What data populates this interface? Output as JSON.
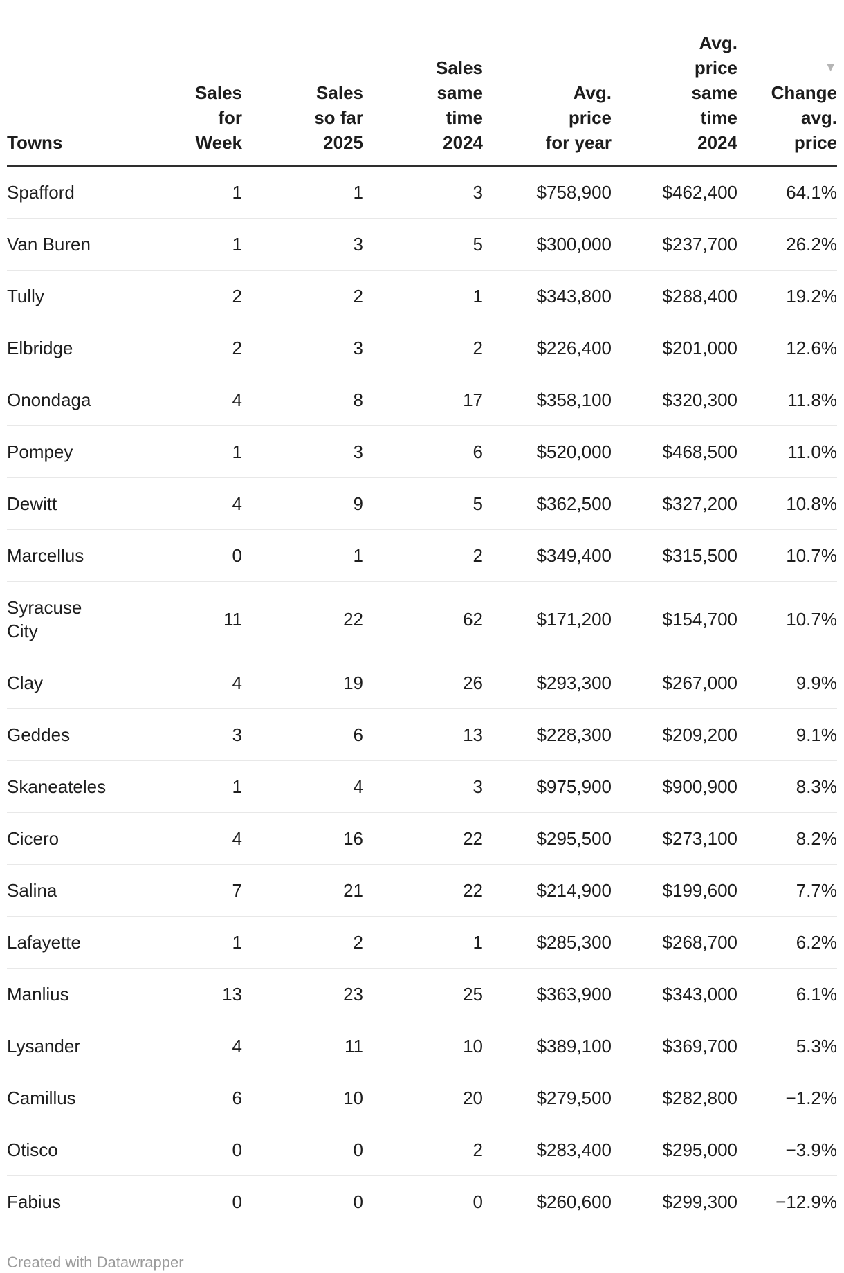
{
  "table": {
    "sort_indicator": "▼",
    "sorted_column": "change",
    "columns": [
      {
        "key": "town",
        "label": "Towns",
        "align": "left"
      },
      {
        "key": "week",
        "label": "Sales\nfor\nWeek",
        "align": "right"
      },
      {
        "key": "ytd2025",
        "label": "Sales\nso far\n2025",
        "align": "right"
      },
      {
        "key": "same2024",
        "label": "Sales\nsame\ntime\n2024",
        "align": "right"
      },
      {
        "key": "avgprice",
        "label": "Avg.\nprice\nfor year",
        "align": "right"
      },
      {
        "key": "avg2024",
        "label": "Avg.\nprice\nsame\ntime\n2024",
        "align": "right"
      },
      {
        "key": "change",
        "label": "Change\navg.\nprice",
        "align": "right"
      }
    ],
    "rows": [
      {
        "town": "Spafford",
        "week": "1",
        "ytd2025": "1",
        "same2024": "3",
        "avgprice": "$758,900",
        "avg2024": "$462,400",
        "change": "64.1%"
      },
      {
        "town": "Van Buren",
        "week": "1",
        "ytd2025": "3",
        "same2024": "5",
        "avgprice": "$300,000",
        "avg2024": "$237,700",
        "change": "26.2%"
      },
      {
        "town": "Tully",
        "week": "2",
        "ytd2025": "2",
        "same2024": "1",
        "avgprice": "$343,800",
        "avg2024": "$288,400",
        "change": "19.2%"
      },
      {
        "town": "Elbridge",
        "week": "2",
        "ytd2025": "3",
        "same2024": "2",
        "avgprice": "$226,400",
        "avg2024": "$201,000",
        "change": "12.6%"
      },
      {
        "town": "Onondaga",
        "week": "4",
        "ytd2025": "8",
        "same2024": "17",
        "avgprice": "$358,100",
        "avg2024": "$320,300",
        "change": "11.8%"
      },
      {
        "town": "Pompey",
        "week": "1",
        "ytd2025": "3",
        "same2024": "6",
        "avgprice": "$520,000",
        "avg2024": "$468,500",
        "change": "11.0%"
      },
      {
        "town": "Dewitt",
        "week": "4",
        "ytd2025": "9",
        "same2024": "5",
        "avgprice": "$362,500",
        "avg2024": "$327,200",
        "change": "10.8%"
      },
      {
        "town": "Marcellus",
        "week": "0",
        "ytd2025": "1",
        "same2024": "2",
        "avgprice": "$349,400",
        "avg2024": "$315,500",
        "change": "10.7%"
      },
      {
        "town": "Syracuse City",
        "week": "11",
        "ytd2025": "22",
        "same2024": "62",
        "avgprice": "$171,200",
        "avg2024": "$154,700",
        "change": "10.7%"
      },
      {
        "town": "Clay",
        "week": "4",
        "ytd2025": "19",
        "same2024": "26",
        "avgprice": "$293,300",
        "avg2024": "$267,000",
        "change": "9.9%"
      },
      {
        "town": "Geddes",
        "week": "3",
        "ytd2025": "6",
        "same2024": "13",
        "avgprice": "$228,300",
        "avg2024": "$209,200",
        "change": "9.1%"
      },
      {
        "town": "Skaneateles",
        "week": "1",
        "ytd2025": "4",
        "same2024": "3",
        "avgprice": "$975,900",
        "avg2024": "$900,900",
        "change": "8.3%"
      },
      {
        "town": "Cicero",
        "week": "4",
        "ytd2025": "16",
        "same2024": "22",
        "avgprice": "$295,500",
        "avg2024": "$273,100",
        "change": "8.2%"
      },
      {
        "town": "Salina",
        "week": "7",
        "ytd2025": "21",
        "same2024": "22",
        "avgprice": "$214,900",
        "avg2024": "$199,600",
        "change": "7.7%"
      },
      {
        "town": "Lafayette",
        "week": "1",
        "ytd2025": "2",
        "same2024": "1",
        "avgprice": "$285,300",
        "avg2024": "$268,700",
        "change": "6.2%"
      },
      {
        "town": "Manlius",
        "week": "13",
        "ytd2025": "23",
        "same2024": "25",
        "avgprice": "$363,900",
        "avg2024": "$343,000",
        "change": "6.1%"
      },
      {
        "town": "Lysander",
        "week": "4",
        "ytd2025": "11",
        "same2024": "10",
        "avgprice": "$389,100",
        "avg2024": "$369,700",
        "change": "5.3%"
      },
      {
        "town": "Camillus",
        "week": "6",
        "ytd2025": "10",
        "same2024": "20",
        "avgprice": "$279,500",
        "avg2024": "$282,800",
        "change": "−1.2%"
      },
      {
        "town": "Otisco",
        "week": "0",
        "ytd2025": "0",
        "same2024": "2",
        "avgprice": "$283,400",
        "avg2024": "$295,000",
        "change": "−3.9%"
      },
      {
        "town": "Fabius",
        "week": "0",
        "ytd2025": "0",
        "same2024": "0",
        "avgprice": "$260,600",
        "avg2024": "$299,300",
        "change": "−12.9%"
      }
    ]
  },
  "footer": {
    "credit": "Created with Datawrapper"
  },
  "colors": {
    "text": "#1d1d1d",
    "header_border": "#2e2e2e",
    "row_divider": "#e8e8e8",
    "footer_text": "#9b9b9b",
    "sort_icon": "#b5b5b5",
    "background": "#ffffff"
  }
}
